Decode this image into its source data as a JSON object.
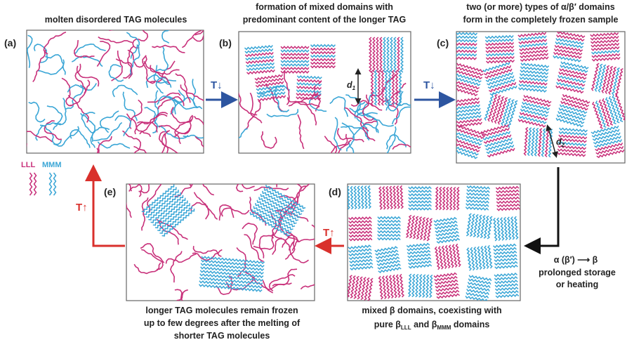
{
  "legend": {
    "lll": "LLL",
    "mmm": "MMM"
  },
  "panels": [
    {
      "label": "(a)",
      "caption": [
        "molten disordered TAG molecules"
      ]
    },
    {
      "label": "(b)",
      "caption": [
        "formation of mixed domains with",
        "predominant content of the longer TAG"
      ],
      "annotation": [
        "d",
        "1"
      ]
    },
    {
      "label": "(c)",
      "caption": [
        "two (or more) types of α/β′ domains",
        "form in the completely frozen sample"
      ],
      "annotation": [
        "d",
        "2"
      ]
    },
    {
      "label": "(d)",
      "caption": [
        "mixed β domains, coexisting with",
        [
          "pure β",
          "LLL",
          " and β",
          "MMM",
          " domains"
        ]
      ]
    },
    {
      "label": "(e)",
      "caption": [
        "longer TAG molecules remain frozen",
        "up to few degrees after the melting of",
        "shorter TAG molecules"
      ]
    }
  ],
  "arrows": {
    "cool_1": "T↓",
    "cool_2": "T↓",
    "heat_1": "T↑",
    "heat_2": "T↑"
  },
  "transition": [
    "α (β′) ⟶ β",
    "prolonged storage",
    "or heating"
  ]
}
